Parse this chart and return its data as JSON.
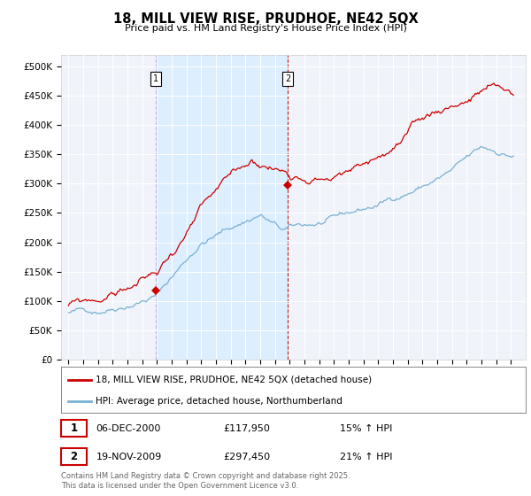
{
  "title": "18, MILL VIEW RISE, PRUDHOE, NE42 5QX",
  "subtitle": "Price paid vs. HM Land Registry's House Price Index (HPI)",
  "legend_line1": "18, MILL VIEW RISE, PRUDHOE, NE42 5QX (detached house)",
  "legend_line2": "HPI: Average price, detached house, Northumberland",
  "red_color": "#cc0000",
  "blue_color": "#7ab0d4",
  "shade_color": "#ddeeff",
  "marker1_date": "06-DEC-2000",
  "marker1_price": 117950,
  "marker1_label": "1",
  "marker1_pct": "15% ↑ HPI",
  "marker2_date": "19-NOV-2009",
  "marker2_price": 297450,
  "marker2_label": "2",
  "marker2_pct": "21% ↑ HPI",
  "footer": "Contains HM Land Registry data © Crown copyright and database right 2025.\nThis data is licensed under the Open Government Licence v3.0.",
  "ylim_min": 0,
  "ylim_max": 520000,
  "yticks": [
    0,
    50000,
    100000,
    150000,
    200000,
    250000,
    300000,
    350000,
    400000,
    450000,
    500000
  ],
  "ytick_labels": [
    "£0",
    "£50K",
    "£100K",
    "£150K",
    "£200K",
    "£250K",
    "£300K",
    "£350K",
    "£400K",
    "£450K",
    "£500K"
  ],
  "background_color": "#ffffff",
  "plot_bg_color": "#f0f4fa",
  "sale1_x": 2000.92,
  "sale1_y": 117950,
  "sale2_x": 2009.88,
  "sale2_y": 297450,
  "xmin": 1994.5,
  "xmax": 2026.0
}
